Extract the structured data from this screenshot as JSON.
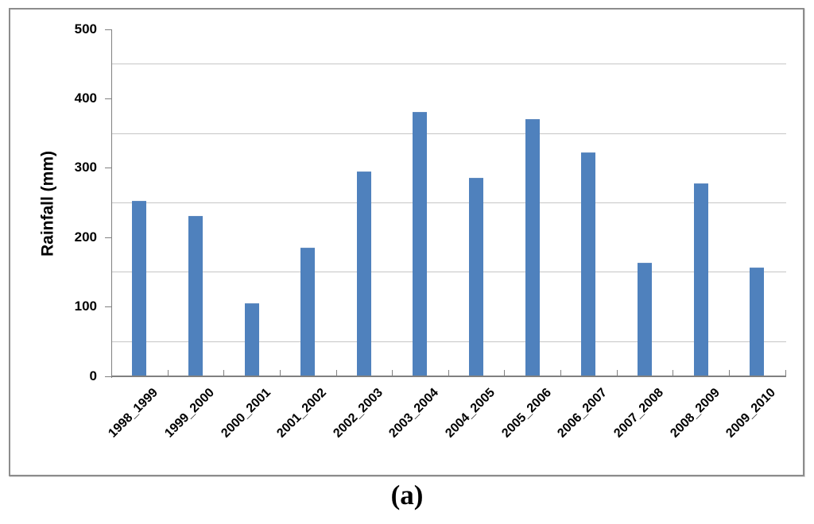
{
  "figure": {
    "caption": "(a)",
    "frame_color": "#8c8c8c",
    "background": "#ffffff"
  },
  "chart_data": {
    "type": "bar",
    "title": "",
    "xlabel": "",
    "ylabel": "Rainfall (mm)",
    "categories": [
      "1998_1999",
      "1999_2000",
      "2000_2001",
      "2001_2002",
      "2002_2003",
      "2003_2004",
      "2004_2005",
      "2005_2006",
      "2006_2007",
      "2007_2008",
      "2008_2009",
      "2009_2010"
    ],
    "values": [
      252,
      230,
      105,
      185,
      295,
      380,
      286,
      370,
      322,
      163,
      278,
      156
    ],
    "ylim": [
      0,
      500
    ],
    "y_major_ticks": [
      0,
      100,
      200,
      300,
      400,
      500
    ],
    "gridline_values": [
      50,
      150,
      250,
      350,
      450
    ],
    "grid": "horizontal lines at 50,150,250,350,450 only",
    "legend_position": "none",
    "bar_color": "#4f81bd",
    "gridline_color": "#c6c6c6",
    "axis_color": "#808080",
    "text_color": "#000000",
    "x_labels_rotation_deg": -45
  }
}
